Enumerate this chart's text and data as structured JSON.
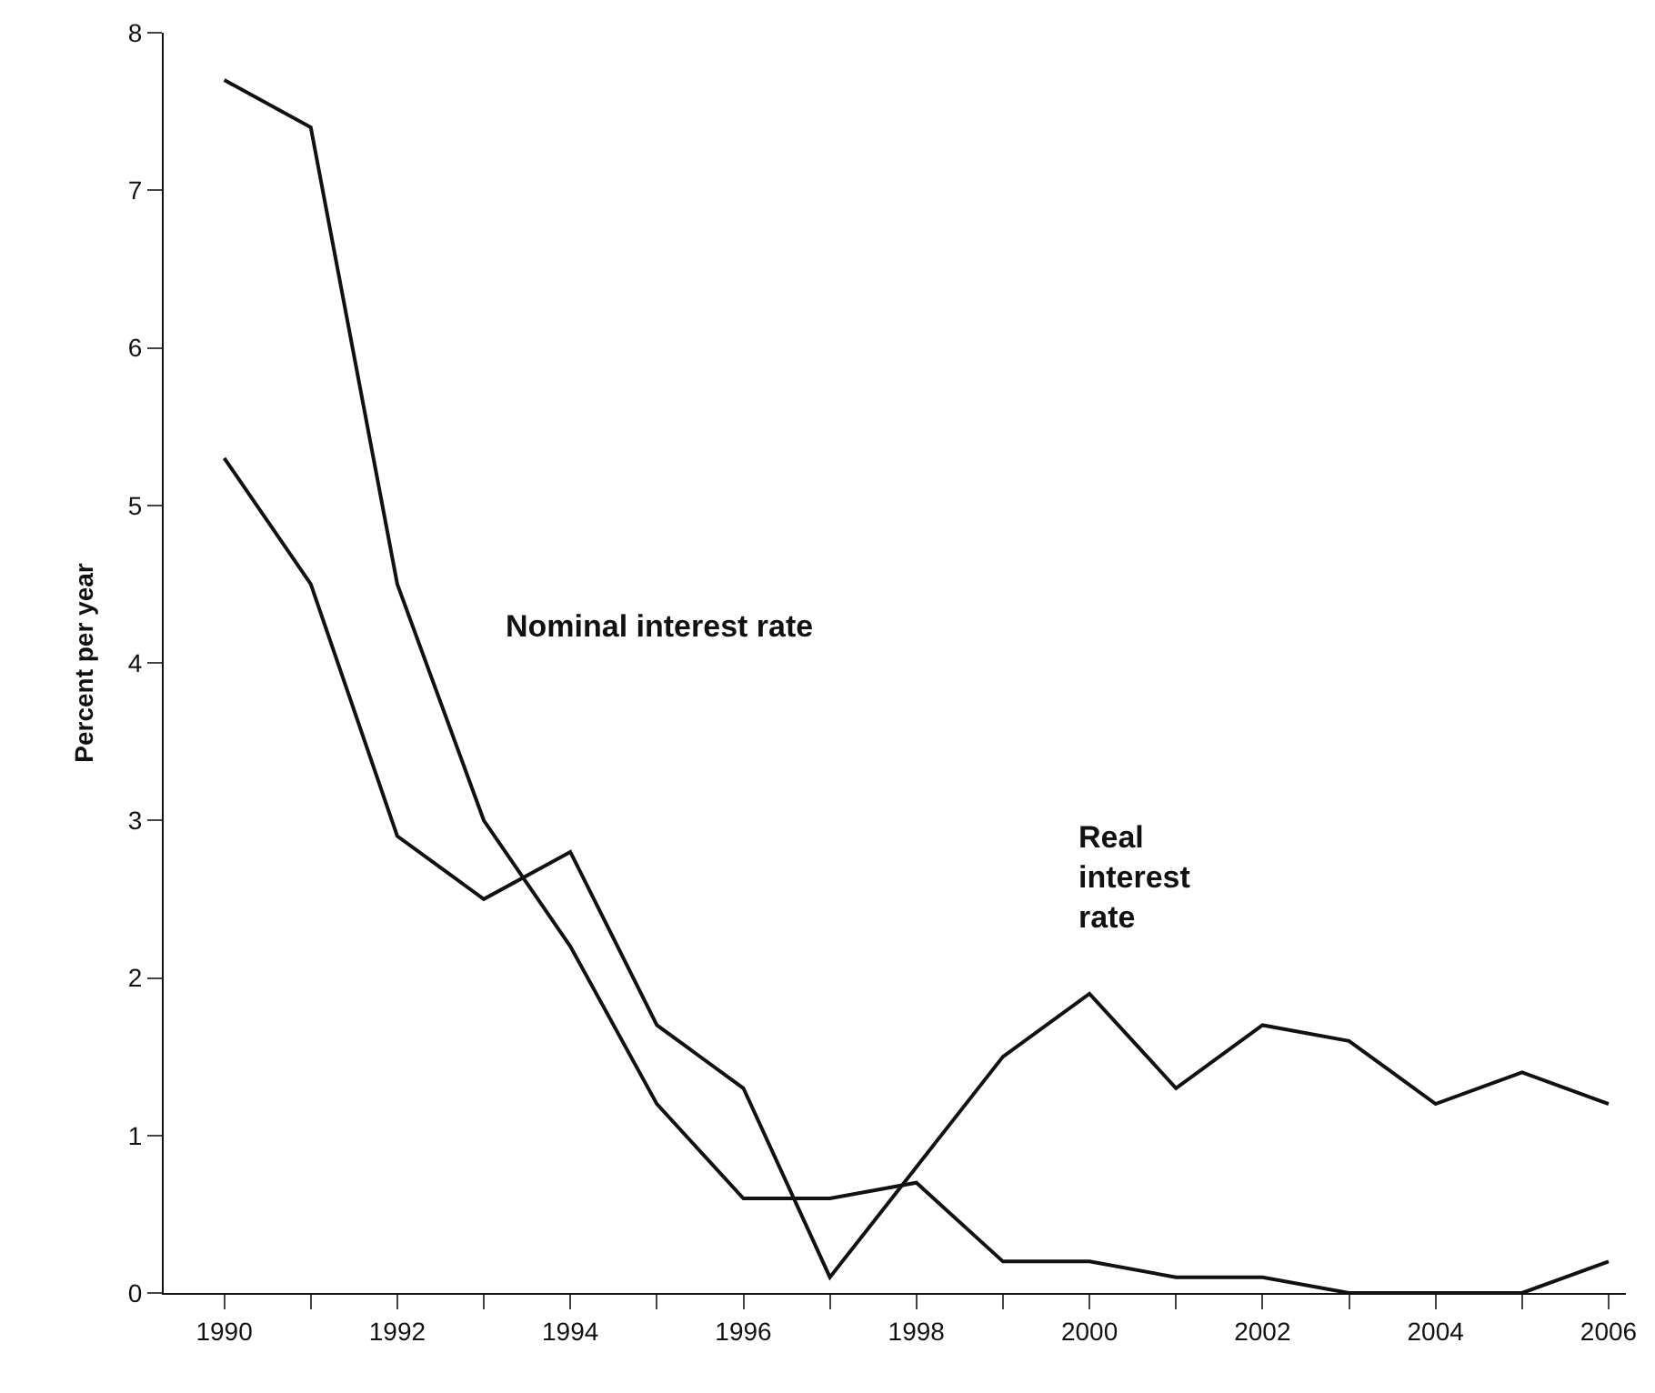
{
  "chart_data": {
    "type": "line",
    "ylabel": "Percent per year",
    "x": [
      1990,
      1991,
      1992,
      1993,
      1994,
      1995,
      1996,
      1997,
      1998,
      1999,
      2000,
      2001,
      2002,
      2003,
      2004,
      2005,
      2006
    ],
    "series": [
      {
        "name": "Nominal interest rate",
        "color": "#111111",
        "values": [
          7.7,
          7.4,
          4.5,
          3.0,
          2.2,
          1.2,
          0.6,
          0.6,
          0.7,
          0.2,
          0.2,
          0.1,
          0.1,
          0.0,
          0.0,
          0.0,
          0.2
        ]
      },
      {
        "name": "Real\ninterest\nrate",
        "color": "#111111",
        "values": [
          5.3,
          4.5,
          2.9,
          2.5,
          2.8,
          1.7,
          1.3,
          0.1,
          0.8,
          1.5,
          1.9,
          1.3,
          1.7,
          1.6,
          1.2,
          1.4,
          1.2
        ]
      }
    ],
    "xlim": [
      1989.3,
      2006.2
    ],
    "ylim": [
      0,
      8
    ],
    "xticks": [
      1990,
      {
        "value": 1991,
        "label": null
      },
      1992,
      {
        "value": 1993,
        "label": null
      },
      1994,
      {
        "value": 1995,
        "label": null
      },
      1996,
      {
        "value": 1997,
        "label": null
      },
      1998,
      {
        "value": 1999,
        "label": null
      },
      2000,
      {
        "value": 2001,
        "label": null
      },
      2002,
      {
        "value": 2003,
        "label": null
      },
      2004,
      {
        "value": 2005,
        "label": null
      },
      2006
    ],
    "yticks": [
      0,
      1,
      2,
      3,
      4,
      5,
      6,
      7,
      8
    ],
    "legend": false,
    "marker": "none",
    "line_style": "solid"
  }
}
